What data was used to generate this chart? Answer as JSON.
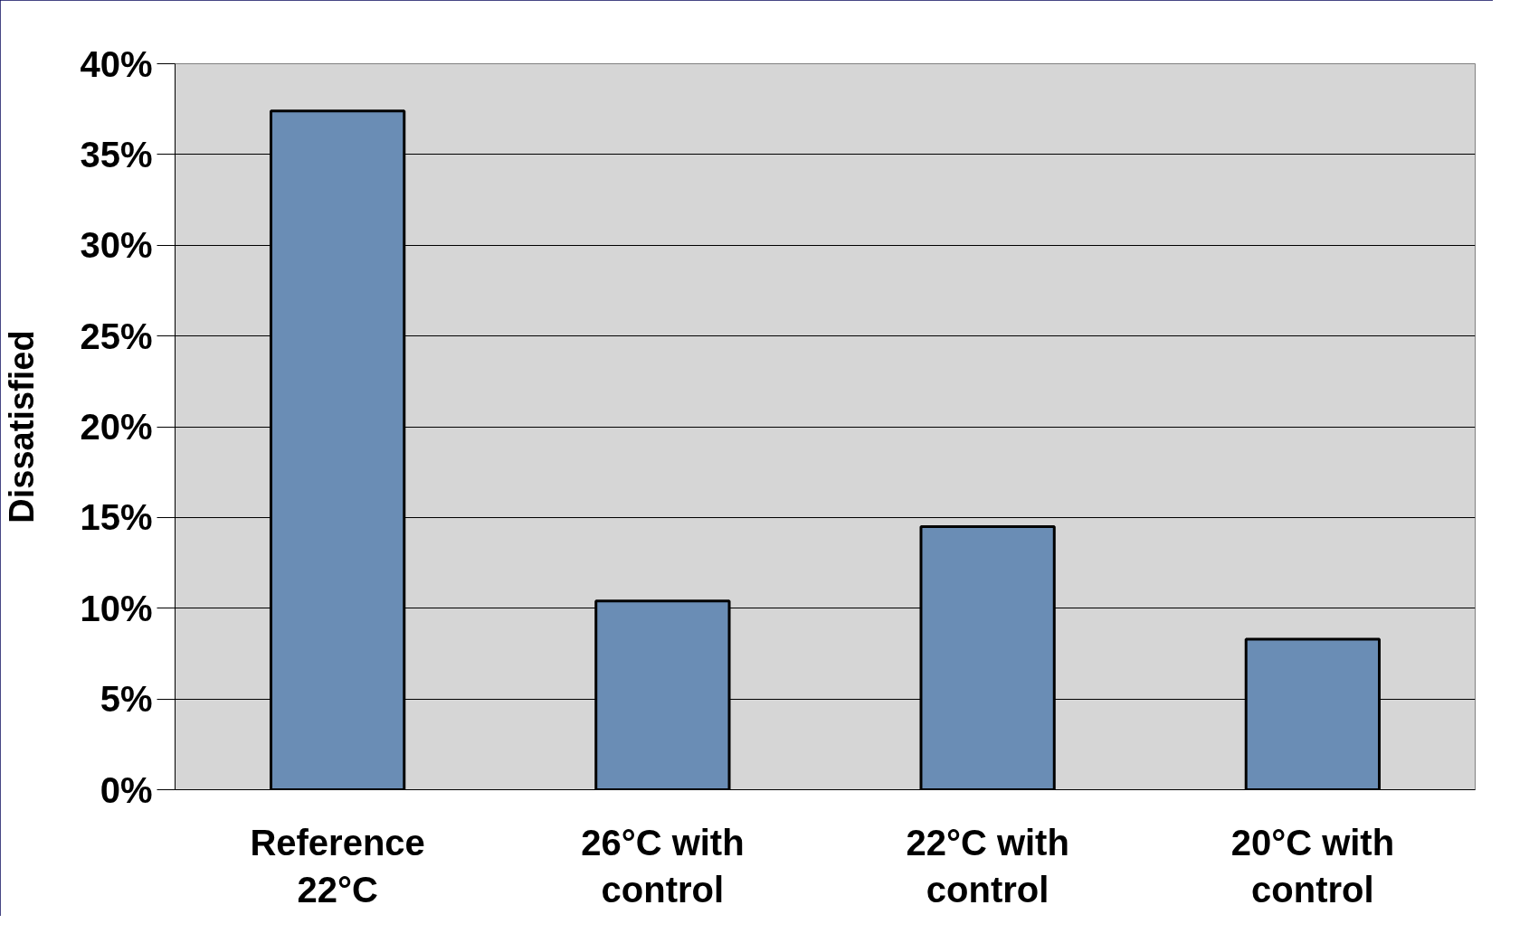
{
  "chart_data": {
    "type": "bar",
    "ylabel": "Dissatisfied",
    "categories": [
      "Reference 22°C",
      "26°C with control",
      "22°C with control",
      "20°C with control"
    ],
    "values": [
      37.4,
      10.4,
      14.5,
      8.3
    ],
    "color": "#6a8db5",
    "ylim": [
      0,
      40
    ],
    "yticks": [
      {
        "value": 0,
        "label": "0%"
      },
      {
        "value": 5,
        "label": "5%"
      },
      {
        "value": 10,
        "label": "10%"
      },
      {
        "value": 15,
        "label": "15%"
      },
      {
        "value": 20,
        "label": "20%"
      },
      {
        "value": 25,
        "label": "25%"
      },
      {
        "value": 30,
        "label": "30%"
      },
      {
        "value": 35,
        "label": "35%"
      },
      {
        "value": 40,
        "label": "40%"
      }
    ],
    "grid": "y"
  }
}
